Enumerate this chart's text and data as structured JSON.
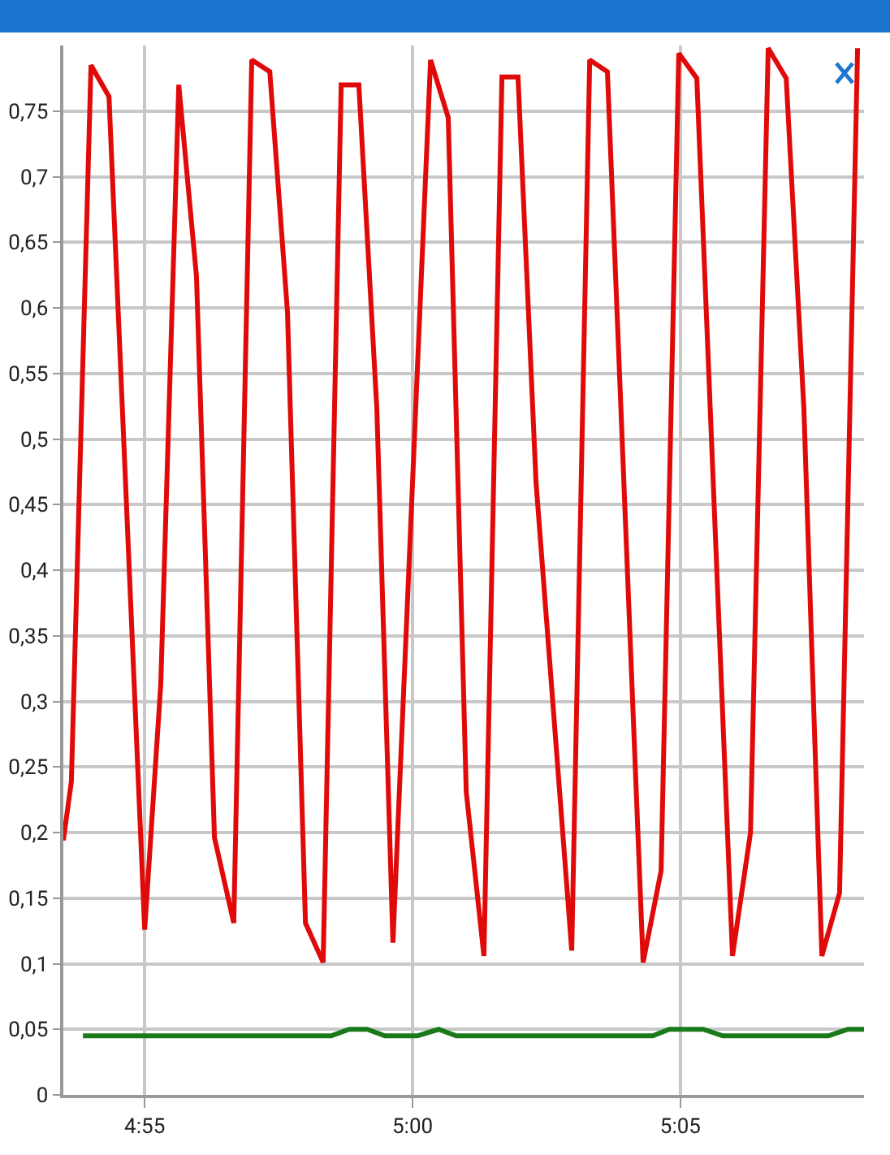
{
  "chart_data": {
    "type": "line",
    "xlim": [
      4.8914,
      5.1404
    ],
    "ylim": [
      0,
      0.8
    ],
    "xticks": [
      {
        "value": 4.9167,
        "label": "4:55"
      },
      {
        "value": 5,
        "label": "5:00"
      },
      {
        "value": 5.0833,
        "label": "5:05"
      }
    ],
    "yticks": [
      0,
      {
        "value": 0.05,
        "label": "0,05"
      },
      {
        "value": 0.1,
        "label": "0,1"
      },
      {
        "value": 0.15,
        "label": "0,15"
      },
      {
        "value": 0.2,
        "label": "0,2"
      },
      {
        "value": 0.25,
        "label": "0,25"
      },
      {
        "value": 0.3,
        "label": "0,3"
      },
      {
        "value": 0.35,
        "label": "0,35"
      },
      {
        "value": 0.4,
        "label": "0,4"
      },
      {
        "value": 0.45,
        "label": "0,45"
      },
      {
        "value": 0.5,
        "label": "0,5"
      },
      {
        "value": 0.55,
        "label": "0,55"
      },
      {
        "value": 0.6,
        "label": "0,6"
      },
      {
        "value": 0.65,
        "label": "0,65"
      },
      {
        "value": 0.7,
        "label": "0,7"
      },
      {
        "value": 0.75,
        "label": "0,75"
      }
    ],
    "grid": true,
    "marker": "none",
    "line_style": "solid",
    "series": [
      {
        "color": "#e00a0a",
        "x": [
          4.8914,
          4.8939,
          4.9,
          4.9056,
          4.9167,
          4.9217,
          4.9273,
          4.9328,
          4.9384,
          4.9444,
          4.95,
          4.9556,
          4.9611,
          4.9667,
          4.9722,
          4.9778,
          4.9833,
          4.9889,
          4.9939,
          5.0056,
          5.0111,
          5.0167,
          5.0222,
          5.0278,
          5.0328,
          5.0384,
          5.0495,
          5.0551,
          5.0606,
          5.0717,
          5.0773,
          5.0828,
          5.0884,
          5.0995,
          5.1051,
          5.1106,
          5.1162,
          5.1217,
          5.1273,
          5.1328,
          5.1384
        ],
        "values": [
          0.194,
          0.239,
          0.785,
          0.761,
          0.126,
          0.313,
          0.77,
          0.624,
          0.196,
          0.131,
          0.789,
          0.78,
          0.597,
          0.131,
          0.101,
          0.77,
          0.77,
          0.523,
          0.116,
          0.789,
          0.745,
          0.231,
          0.106,
          0.776,
          0.776,
          0.467,
          0.11,
          0.789,
          0.78,
          0.101,
          0.171,
          0.794,
          0.775,
          0.106,
          0.2,
          0.798,
          0.775,
          0.523,
          0.106,
          0.154,
          0.798
        ]
      },
      {
        "color": "#1a7a1a",
        "x": [
          4.8975,
          4.9747,
          4.9803,
          4.9859,
          4.9914,
          5.0015,
          5.0081,
          5.0136,
          5.0747,
          5.0798,
          5.0904,
          5.0965,
          5.1293,
          5.1354,
          5.1404
        ],
        "values": [
          0.045,
          0.045,
          0.05,
          0.05,
          0.045,
          0.045,
          0.05,
          0.045,
          0.045,
          0.05,
          0.05,
          0.045,
          0.045,
          0.05,
          0.05
        ]
      }
    ]
  }
}
